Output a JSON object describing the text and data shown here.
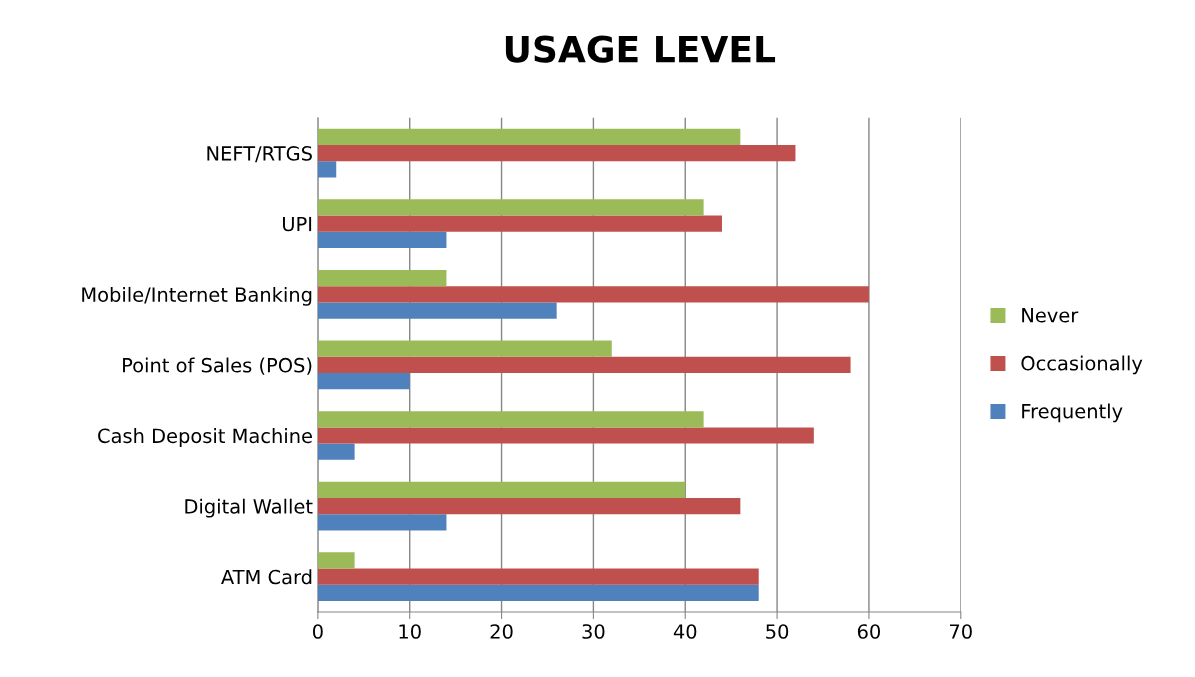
{
  "chart_data": {
    "type": "bar",
    "orientation": "horizontal",
    "title": "USAGE LEVEL",
    "categories": [
      "NEFT/RTGS",
      "UPI",
      "Mobile/Internet Banking",
      "Point of Sales (POS)",
      "Cash Deposit Machine",
      "Digital Wallet",
      "ATM Card"
    ],
    "series": [
      {
        "name": "Frequently",
        "color": "#4f81bd",
        "values": [
          2,
          14,
          26,
          10,
          4,
          14,
          48
        ]
      },
      {
        "name": "Occasionally",
        "color": "#c0504d",
        "values": [
          52,
          44,
          60,
          58,
          54,
          46,
          48
        ]
      },
      {
        "name": "Never",
        "color": "#9bbb59",
        "values": [
          46,
          42,
          14,
          32,
          42,
          40,
          4
        ]
      }
    ],
    "xlim": [
      0,
      70
    ],
    "xticks": [
      0,
      10,
      20,
      30,
      40,
      50,
      60,
      70
    ],
    "grid": "x",
    "legend": "right"
  }
}
